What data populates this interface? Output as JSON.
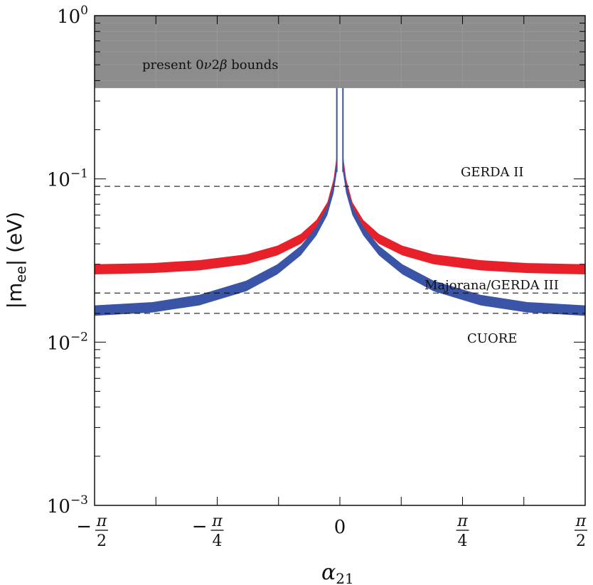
{
  "chart_data": {
    "type": "area",
    "title": "",
    "xlabel": "α",
    "xlabel_sub": "21",
    "ylabel": "|m",
    "ylabel_sub": "ee",
    "ylabel_tail": "| (eV)",
    "xlim": [
      -1.5708,
      1.5708
    ],
    "ylim": [
      0.001,
      1
    ],
    "yscale": "log",
    "grid": false,
    "x_ticks": [
      {
        "value": -1.5708,
        "sign": "−",
        "num": "π",
        "den": "2"
      },
      {
        "value": -0.7854,
        "sign": "−",
        "num": "π",
        "den": "4"
      },
      {
        "value": 0,
        "text": "0"
      },
      {
        "value": 0.7854,
        "num": "π",
        "den": "4"
      },
      {
        "value": 1.5708,
        "num": "π",
        "den": "2"
      }
    ],
    "y_ticks": [
      {
        "value": 1,
        "base": "10",
        "exp": "0"
      },
      {
        "value": 0.1,
        "base": "10",
        "exp": "−1"
      },
      {
        "value": 0.01,
        "base": "10",
        "exp": "−2"
      },
      {
        "value": 0.001,
        "base": "10",
        "exp": "−3"
      }
    ],
    "excluded_region": {
      "label": "present 0",
      "label_nu": "ν",
      "label_two": "2",
      "label_beta": "β",
      "label_tail": " bounds",
      "y_min": 0.36,
      "y_max": 1,
      "color": "#8c8c8c"
    },
    "sensitivity_lines": [
      {
        "name": "GERDA II",
        "y": 0.09
      },
      {
        "name": "Majorana/GERDA III",
        "y": 0.02
      },
      {
        "name": "CUORE",
        "y": 0.015
      }
    ],
    "series": [
      {
        "color": "#e8202a",
        "x": [
          -1.5708,
          -1.2,
          -0.9,
          -0.6,
          -0.4,
          -0.25,
          -0.15,
          -0.08,
          -0.04,
          -0.02,
          0.02,
          0.04,
          0.08,
          0.15,
          0.25,
          0.4,
          0.6,
          0.9,
          1.2,
          1.5708
        ],
        "lower": [
          0.026,
          0.0265,
          0.0275,
          0.03,
          0.034,
          0.04,
          0.049,
          0.063,
          0.085,
          0.11,
          0.11,
          0.085,
          0.063,
          0.049,
          0.04,
          0.034,
          0.03,
          0.0275,
          0.0265,
          0.026
        ],
        "upper": [
          0.03,
          0.0305,
          0.0318,
          0.0345,
          0.039,
          0.046,
          0.056,
          0.072,
          0.1,
          0.14,
          0.14,
          0.1,
          0.072,
          0.056,
          0.046,
          0.039,
          0.0345,
          0.0318,
          0.0305,
          0.03
        ]
      },
      {
        "color": "#3a55a8",
        "x": [
          -1.5708,
          -1.2,
          -0.9,
          -0.6,
          -0.4,
          -0.25,
          -0.15,
          -0.08,
          -0.04,
          -0.02,
          0.02,
          0.04,
          0.08,
          0.15,
          0.25,
          0.4,
          0.6,
          0.9,
          1.2,
          1.5708
        ],
        "lower": [
          0.0145,
          0.0152,
          0.0168,
          0.0205,
          0.026,
          0.034,
          0.045,
          0.06,
          0.082,
          0.11,
          0.11,
          0.082,
          0.06,
          0.045,
          0.034,
          0.026,
          0.0205,
          0.0168,
          0.0152,
          0.0145
        ],
        "upper": [
          0.0168,
          0.0176,
          0.0195,
          0.0238,
          0.03,
          0.039,
          0.051,
          0.068,
          0.094,
          0.13,
          0.13,
          0.094,
          0.068,
          0.051,
          0.039,
          0.03,
          0.0238,
          0.0195,
          0.0176,
          0.0168
        ]
      }
    ],
    "spike": {
      "x": [
        -0.0196,
        0.0196
      ],
      "color": "#3a55a8"
    }
  }
}
